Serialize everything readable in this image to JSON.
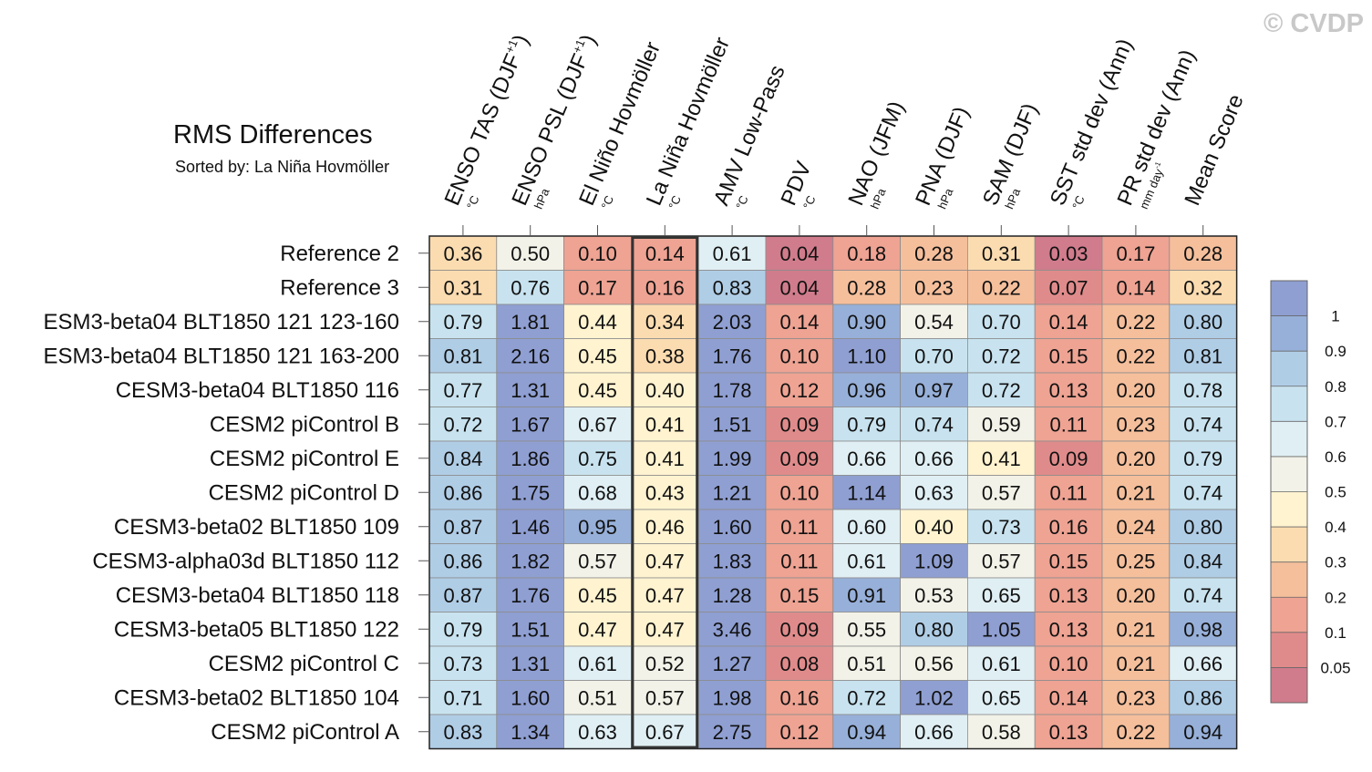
{
  "watermark": "© CVDP",
  "chart_data": {
    "type": "heatmap",
    "title": "RMS Differences",
    "subtitle": "Sorted by: La Niña Hovmöller",
    "columns": [
      {
        "label": "ENSO TAS (DJF",
        "sup": "+1",
        "close": ")",
        "unit": "°C"
      },
      {
        "label": "ENSO PSL (DJF",
        "sup": "+1",
        "close": ")",
        "unit": "hPa"
      },
      {
        "label": "El Niño Hovmöller",
        "unit": "°C"
      },
      {
        "label": "La Niña Hovmöller",
        "unit": "°C"
      },
      {
        "label": "AMV Low-Pass",
        "unit": "°C"
      },
      {
        "label": "PDV",
        "unit": "°C"
      },
      {
        "label": "NAO (JFM)",
        "unit": "hPa"
      },
      {
        "label": "PNA (DJF)",
        "unit": "hPa"
      },
      {
        "label": "SAM (DJF)",
        "unit": "hPa"
      },
      {
        "label": "SST std dev (Ann)",
        "unit": "°C"
      },
      {
        "label": "PR std dev (Ann)",
        "unit": "mm day",
        "unit_sup": "-1"
      },
      {
        "label": "Mean Score",
        "unit": ""
      }
    ],
    "highlighted_column": 3,
    "rows": [
      "Reference 2",
      "Reference 3",
      "ESM3-beta04 BLT1850 121 123-160",
      "ESM3-beta04 BLT1850 121 163-200",
      "CESM3-beta04 BLT1850 116",
      "CESM2 piControl B",
      "CESM2 piControl E",
      "CESM2 piControl D",
      "CESM3-beta02 BLT1850 109",
      "CESM3-alpha03d BLT1850 112",
      "CESM3-beta04 BLT1850 118",
      "CESM3-beta05 BLT1850 122",
      "CESM2 piControl C",
      "CESM3-beta02 BLT1850 104",
      "CESM2 piControl A"
    ],
    "values": [
      [
        "0.36",
        "0.50",
        "0.10",
        "0.14",
        "0.61",
        "0.04",
        "0.18",
        "0.28",
        "0.31",
        "0.03",
        "0.17",
        "0.28"
      ],
      [
        "0.31",
        "0.76",
        "0.17",
        "0.16",
        "0.83",
        "0.04",
        "0.28",
        "0.23",
        "0.22",
        "0.07",
        "0.14",
        "0.32"
      ],
      [
        "0.79",
        "1.81",
        "0.44",
        "0.34",
        "2.03",
        "0.14",
        "0.90",
        "0.54",
        "0.70",
        "0.14",
        "0.22",
        "0.80"
      ],
      [
        "0.81",
        "2.16",
        "0.45",
        "0.38",
        "1.76",
        "0.10",
        "1.10",
        "0.70",
        "0.72",
        "0.15",
        "0.22",
        "0.81"
      ],
      [
        "0.77",
        "1.31",
        "0.45",
        "0.40",
        "1.78",
        "0.12",
        "0.96",
        "0.97",
        "0.72",
        "0.13",
        "0.20",
        "0.78"
      ],
      [
        "0.72",
        "1.67",
        "0.67",
        "0.41",
        "1.51",
        "0.09",
        "0.79",
        "0.74",
        "0.59",
        "0.11",
        "0.23",
        "0.74"
      ],
      [
        "0.84",
        "1.86",
        "0.75",
        "0.41",
        "1.99",
        "0.09",
        "0.66",
        "0.66",
        "0.41",
        "0.09",
        "0.20",
        "0.79"
      ],
      [
        "0.86",
        "1.75",
        "0.68",
        "0.43",
        "1.21",
        "0.10",
        "1.14",
        "0.63",
        "0.57",
        "0.11",
        "0.21",
        "0.74"
      ],
      [
        "0.87",
        "1.46",
        "0.95",
        "0.46",
        "1.60",
        "0.11",
        "0.60",
        "0.40",
        "0.73",
        "0.16",
        "0.24",
        "0.80"
      ],
      [
        "0.86",
        "1.82",
        "0.57",
        "0.47",
        "1.83",
        "0.11",
        "0.61",
        "1.09",
        "0.57",
        "0.15",
        "0.25",
        "0.84"
      ],
      [
        "0.87",
        "1.76",
        "0.45",
        "0.47",
        "1.28",
        "0.15",
        "0.91",
        "0.53",
        "0.65",
        "0.13",
        "0.20",
        "0.74"
      ],
      [
        "0.79",
        "1.51",
        "0.47",
        "0.47",
        "3.46",
        "0.09",
        "0.55",
        "0.80",
        "1.05",
        "0.13",
        "0.21",
        "0.98"
      ],
      [
        "0.73",
        "1.31",
        "0.61",
        "0.52",
        "1.27",
        "0.08",
        "0.51",
        "0.56",
        "0.61",
        "0.10",
        "0.21",
        "0.66"
      ],
      [
        "0.71",
        "1.60",
        "0.51",
        "0.57",
        "1.98",
        "0.16",
        "0.72",
        "1.02",
        "0.65",
        "0.14",
        "0.23",
        "0.86"
      ],
      [
        "0.83",
        "1.34",
        "0.63",
        "0.67",
        "2.75",
        "0.12",
        "0.94",
        "0.66",
        "0.58",
        "0.13",
        "0.22",
        "0.94"
      ]
    ],
    "colorbar": {
      "levels": [
        0.05,
        0.1,
        0.2,
        0.3,
        0.4,
        0.5,
        0.6,
        0.7,
        0.8,
        0.9,
        1
      ],
      "labels": [
        "0.05",
        "0.1",
        "0.2",
        "0.3",
        "0.4",
        "0.5",
        "0.6",
        "0.7",
        "0.8",
        "0.9",
        "1"
      ],
      "colors": [
        "#d07c8c",
        "#e08b8b",
        "#eea393",
        "#f5bf9c",
        "#fbdcb0",
        "#fff3d0",
        "#f2f2e8",
        "#e0eff4",
        "#c8e3ef",
        "#b0cde6",
        "#97b0d9",
        "#8f9fd2"
      ]
    }
  }
}
